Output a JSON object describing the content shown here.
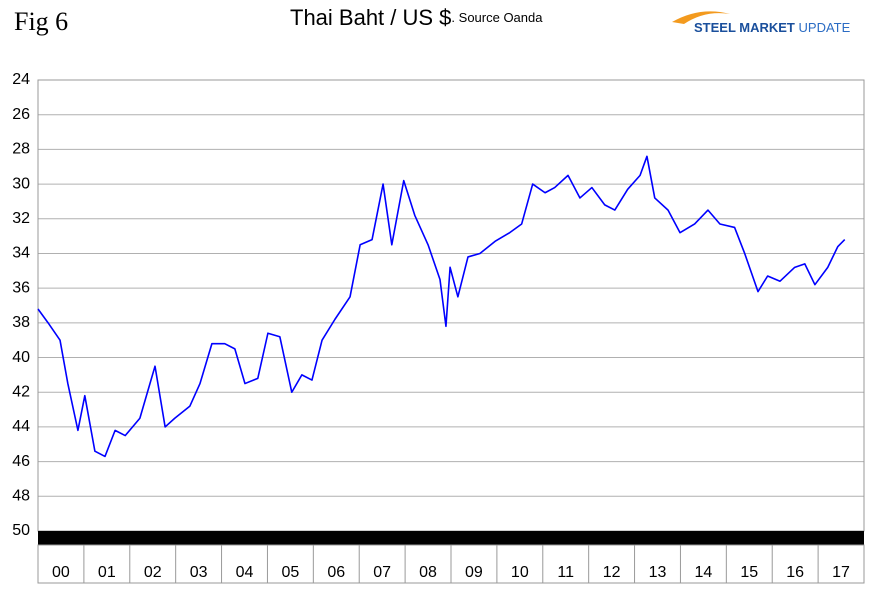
{
  "chart_data": {
    "type": "line",
    "figure_label": "Fig 6",
    "title": "Thai Baht / US $",
    "subtitle": ". Source Oanda",
    "logo_strong": "STEEL MARKET",
    "logo_light": "UPDATE",
    "categories": [
      "00",
      "01",
      "02",
      "03",
      "04",
      "05",
      "06",
      "07",
      "08",
      "09",
      "10",
      "11",
      "12",
      "13",
      "14",
      "15",
      "16",
      "17"
    ],
    "x": [
      0,
      0.22,
      0.48,
      0.65,
      0.87,
      1.02,
      1.24,
      1.46,
      1.68,
      1.9,
      2.22,
      2.55,
      2.77,
      2.98,
      3.31,
      3.53,
      3.79,
      4.07,
      4.29,
      4.51,
      4.79,
      5.01,
      5.27,
      5.53,
      5.75,
      5.97,
      6.19,
      6.47,
      6.8,
      7.02,
      7.28,
      7.52,
      7.71,
      7.97,
      8.21,
      8.5,
      8.76,
      8.89,
      8.98,
      9.15,
      9.37,
      9.63,
      9.96,
      10.28,
      10.54,
      10.78,
      11.05,
      11.26,
      11.55,
      11.81,
      12.07,
      12.35,
      12.57,
      12.85,
      13.12,
      13.27,
      13.44,
      13.73,
      13.99,
      14.31,
      14.6,
      14.86,
      15.18,
      15.4,
      15.69,
      15.9,
      16.17,
      16.49,
      16.71,
      16.93,
      17.21,
      17.43,
      17.58
    ],
    "values": [
      37.2,
      38.0,
      39.0,
      41.5,
      44.2,
      42.2,
      45.4,
      45.7,
      44.2,
      44.5,
      43.5,
      40.5,
      44.0,
      43.5,
      42.8,
      41.5,
      39.2,
      39.2,
      39.5,
      41.5,
      41.2,
      38.6,
      38.8,
      42.0,
      41.0,
      41.3,
      39.0,
      37.8,
      36.5,
      33.5,
      33.2,
      30.0,
      33.5,
      29.8,
      31.8,
      33.5,
      35.5,
      38.2,
      34.8,
      36.5,
      34.2,
      34.0,
      33.3,
      32.8,
      32.3,
      30.0,
      30.5,
      30.2,
      29.5,
      30.8,
      30.2,
      31.2,
      31.5,
      30.3,
      29.5,
      28.4,
      30.8,
      31.5,
      32.8,
      32.3,
      31.5,
      32.3,
      32.5,
      34.0,
      36.2,
      35.3,
      35.6,
      34.8,
      34.6,
      35.8,
      34.8,
      33.6,
      33.2
    ],
    "color": "#0000ff",
    "xlim": [
      0,
      18
    ],
    "ylim": [
      24,
      50
    ],
    "y_inverted": true,
    "yticks": [
      24,
      26,
      28,
      30,
      32,
      34,
      36,
      38,
      40,
      42,
      44,
      46,
      48,
      50
    ],
    "grid": true
  }
}
